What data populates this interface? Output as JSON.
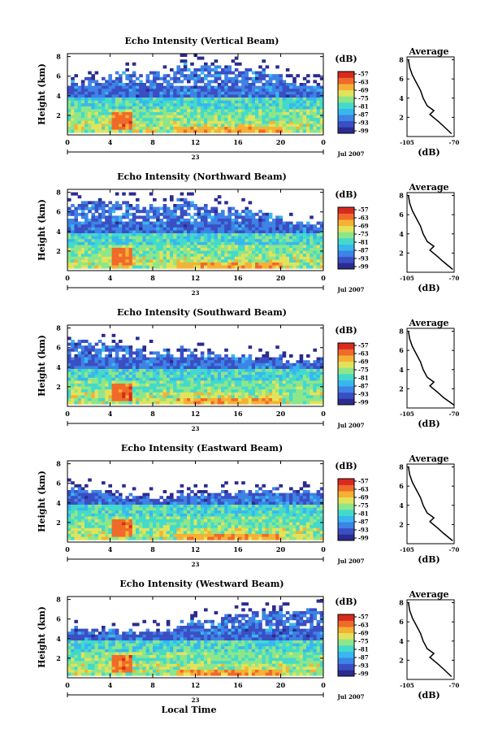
{
  "panels": [
    {
      "title": "Echo Intensity (Vertical Beam)"
    },
    {
      "title": "Echo Intensity (Northward Beam)"
    },
    {
      "title": "Echo Intensity (Southward Beam)"
    },
    {
      "title": "Echo Intensity (Eastward Beam)"
    },
    {
      "title": "Echo Intensity (Westward Beam)"
    }
  ],
  "shared": {
    "ylabel": "Height (km)",
    "xlabel": "Local Time",
    "date_label": "Jul 2007",
    "day_label": "23",
    "unit_label": "(dB)",
    "avg_title": "Average",
    "avg_xlabel": "(dB)",
    "x_ticks": [
      "0",
      "4",
      "8",
      "12",
      "16",
      "20",
      "0"
    ],
    "y_ticks": [
      "2",
      "4",
      "6",
      "8"
    ],
    "avg_x_ticks": [
      "-105",
      "-70"
    ],
    "colorbar_ticks": [
      "-57",
      "-63",
      "-69",
      "-75",
      "-81",
      "-87",
      "-93",
      "-99"
    ]
  },
  "colors": {
    "colormap": [
      "#2b2c8f",
      "#3a4fc4",
      "#3e83e6",
      "#38b7ef",
      "#43dacb",
      "#8de68a",
      "#e2e35a",
      "#f5b134",
      "#f06a2a",
      "#d92a1e"
    ]
  },
  "chart_data": [
    {
      "type": "heatmap",
      "title": "Echo Intensity (Vertical Beam)",
      "xlabel": "",
      "ylabel": "Height (km)",
      "xlim": [
        0,
        24
      ],
      "ylim": [
        0,
        8.3
      ],
      "color_range_db": [
        -99,
        -57
      ],
      "features": {
        "echo_top_km": 6.5,
        "bright_band_hours": [
          4,
          6
        ],
        "bright_band_height_km": [
          0.3,
          2.4
        ]
      },
      "average_profile": {
        "x_db": [
          -104,
          -103,
          -101,
          -98,
          -95,
          -93,
          -90,
          -85,
          -88,
          -82,
          -78,
          -72
        ],
        "height_km": [
          8.0,
          7.2,
          6.4,
          5.6,
          4.8,
          4.0,
          3.2,
          2.7,
          2.3,
          1.6,
          1.1,
          0.3
        ],
        "xlim": [
          -105,
          -70
        ]
      }
    },
    {
      "type": "heatmap",
      "title": "Echo Intensity (Northward Beam)",
      "xlabel": "",
      "ylabel": "Height (km)",
      "xlim": [
        0,
        24
      ],
      "ylim": [
        0,
        8.3
      ],
      "color_range_db": [
        -99,
        -57
      ],
      "features": {
        "echo_top_km": 7.0,
        "bright_band_hours": [
          4,
          6
        ],
        "bright_band_height_km": [
          0.3,
          2.4
        ]
      },
      "average_profile": {
        "x_db": [
          -104,
          -103,
          -101,
          -98,
          -95,
          -93,
          -90,
          -85,
          -88,
          -82,
          -78,
          -71
        ],
        "height_km": [
          8.0,
          7.2,
          6.4,
          5.6,
          4.8,
          4.0,
          3.2,
          2.7,
          2.3,
          1.6,
          1.1,
          0.3
        ],
        "xlim": [
          -105,
          -70
        ]
      }
    },
    {
      "type": "heatmap",
      "title": "Echo Intensity (Southward Beam)",
      "xlabel": "",
      "ylabel": "Height (km)",
      "xlim": [
        0,
        24
      ],
      "ylim": [
        0,
        8.3
      ],
      "color_range_db": [
        -99,
        -57
      ],
      "features": {
        "echo_top_km": 6.8,
        "bright_band_hours": [
          4,
          6
        ],
        "bright_band_height_km": [
          0.3,
          2.4
        ]
      },
      "average_profile": {
        "x_db": [
          -104,
          -103,
          -101,
          -98,
          -95,
          -93,
          -90,
          -85,
          -88,
          -82,
          -78,
          -70
        ],
        "height_km": [
          8.0,
          7.2,
          6.4,
          5.6,
          4.8,
          4.0,
          3.2,
          2.7,
          2.3,
          1.6,
          1.1,
          0.3
        ],
        "xlim": [
          -105,
          -70
        ]
      }
    },
    {
      "type": "heatmap",
      "title": "Echo Intensity (Eastward Beam)",
      "xlabel": "",
      "ylabel": "Height (km)",
      "xlim": [
        0,
        24
      ],
      "ylim": [
        0,
        8.3
      ],
      "color_range_db": [
        -99,
        -57
      ],
      "features": {
        "echo_top_km": 6.6,
        "bright_band_hours": [
          4,
          6
        ],
        "bright_band_height_km": [
          0.3,
          2.4
        ]
      },
      "average_profile": {
        "x_db": [
          -104,
          -103,
          -101,
          -98,
          -95,
          -93,
          -90,
          -85,
          -88,
          -82,
          -78,
          -71
        ],
        "height_km": [
          8.0,
          7.2,
          6.4,
          5.6,
          4.8,
          4.0,
          3.2,
          2.7,
          2.3,
          1.6,
          1.1,
          0.3
        ],
        "xlim": [
          -105,
          -70
        ]
      }
    },
    {
      "type": "heatmap",
      "title": "Echo Intensity (Westward Beam)",
      "xlabel": "Local Time",
      "ylabel": "Height (km)",
      "xlim": [
        0,
        24
      ],
      "ylim": [
        0,
        8.3
      ],
      "color_range_db": [
        -99,
        -57
      ],
      "features": {
        "echo_top_km": 7.0,
        "bright_band_hours": [
          4,
          6
        ],
        "bright_band_height_km": [
          0.3,
          2.4
        ]
      },
      "average_profile": {
        "x_db": [
          -104,
          -103,
          -101,
          -98,
          -95,
          -93,
          -90,
          -85,
          -88,
          -82,
          -78,
          -72
        ],
        "height_km": [
          8.0,
          7.2,
          6.4,
          5.6,
          4.8,
          4.0,
          3.2,
          2.7,
          2.3,
          1.6,
          1.1,
          0.3
        ],
        "xlim": [
          -105,
          -70
        ]
      }
    }
  ]
}
